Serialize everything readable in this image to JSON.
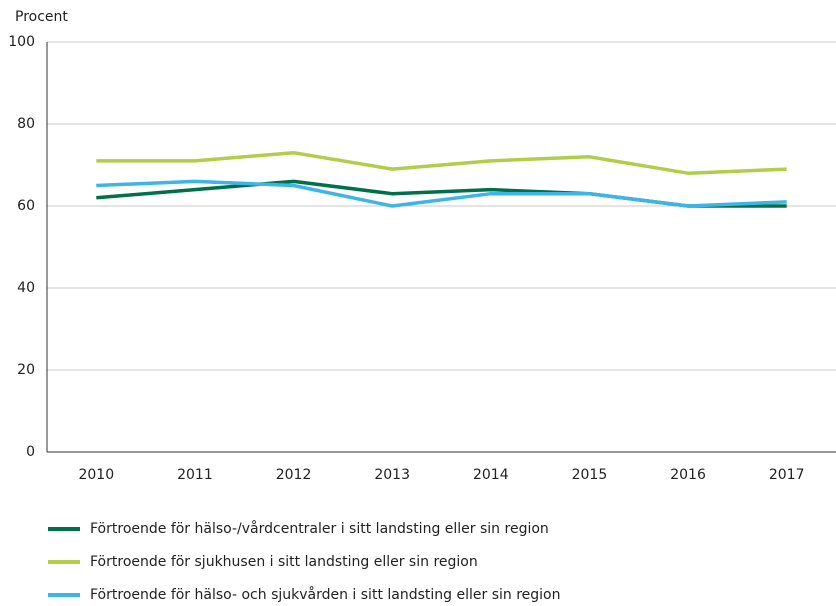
{
  "chart_data": {
    "type": "line",
    "y_label": "Procent",
    "categories": [
      "2010",
      "2011",
      "2012",
      "2013",
      "2014",
      "2015",
      "2016",
      "2017"
    ],
    "series": [
      {
        "name": "Förtroende för hälso-/vårdcentraler i sitt landsting eller sin region",
        "color": "#00704a",
        "values": [
          62,
          64,
          66,
          63,
          64,
          63,
          60,
          60
        ]
      },
      {
        "name": "Förtroende för sjukhusen i sitt landsting eller sin region",
        "color": "#b3cd4b",
        "values": [
          71,
          71,
          73,
          69,
          71,
          72,
          68,
          69
        ]
      },
      {
        "name": "Förtroende för hälso- och sjukvården i sitt landsting eller sin region",
        "color": "#3db5e6",
        "values": [
          65,
          66,
          65,
          60,
          63,
          63,
          60,
          61
        ]
      }
    ],
    "ylim": [
      0,
      100
    ],
    "yticks": [
      0,
      20,
      40,
      60,
      80,
      100
    ],
    "grid": true,
    "legend": "bottom"
  }
}
